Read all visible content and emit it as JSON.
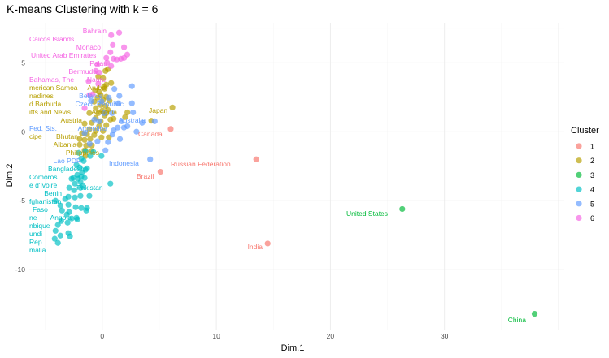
{
  "chart_data": {
    "type": "scatter",
    "title": "K-means Clustering with k = 6",
    "xlabel": "Dim.1",
    "ylabel": "Dim.2",
    "xlim": [
      -6.4,
      40.5
    ],
    "ylim": [
      -14.4,
      7.9
    ],
    "x_ticks": [
      0,
      10,
      20,
      30
    ],
    "y_ticks": [
      5,
      0,
      -5,
      -10
    ],
    "grid": true,
    "legend": {
      "title": "Cluster",
      "position": "right",
      "entries": [
        "1",
        "2",
        "3",
        "4",
        "5",
        "6"
      ]
    },
    "cluster_colors": {
      "1": "#F8766D",
      "2": "#B79F00",
      "3": "#00BA38",
      "4": "#00BFC4",
      "5": "#619CFF",
      "6": "#F564E3"
    },
    "points": {
      "1": [
        [
          6.0,
          0.2
        ],
        [
          13.5,
          -2.0
        ],
        [
          5.1,
          -2.9
        ],
        [
          14.5,
          -8.1
        ]
      ],
      "2": [
        [
          0.28,
          4.41
        ],
        [
          0.49,
          4.53
        ],
        [
          -0.35,
          4.0
        ],
        [
          0.07,
          3.88
        ],
        [
          0.35,
          3.41
        ],
        [
          0.78,
          3.53
        ],
        [
          0.21,
          3.12
        ],
        [
          -0.28,
          2.88
        ],
        [
          -0.64,
          3.0
        ],
        [
          -0.14,
          2.65
        ],
        [
          0.35,
          2.53
        ],
        [
          -0.42,
          2.47
        ],
        [
          0.07,
          2.29
        ],
        [
          0.64,
          2.24
        ],
        [
          -0.71,
          2.18
        ],
        [
          -0.14,
          1.94
        ],
        [
          0.28,
          1.88
        ],
        [
          -0.57,
          1.71
        ],
        [
          0,
          1.53
        ],
        [
          0.49,
          1.59
        ],
        [
          -0.35,
          1.35
        ],
        [
          -1.13,
          1.35
        ],
        [
          0.21,
          1.18
        ],
        [
          -0.57,
          1.0
        ],
        [
          -0.14,
          0.76
        ],
        [
          0.71,
          0.88
        ],
        [
          -0.92,
          0.65
        ],
        [
          -1.55,
          0.59
        ],
        [
          -0.28,
          0.41
        ],
        [
          0.35,
          0.47
        ],
        [
          -1.13,
          0.18
        ],
        [
          -0.57,
          0.06
        ],
        [
          0.07,
          0.06
        ],
        [
          -1.77,
          -0.12
        ],
        [
          -1.34,
          -0.18
        ],
        [
          -0.71,
          -0.24
        ],
        [
          -1.98,
          -0.53
        ],
        [
          -1.55,
          -0.59
        ],
        [
          -1.06,
          -0.53
        ],
        [
          -0.07,
          -0.41
        ],
        [
          0.57,
          -0.41
        ],
        [
          -1.98,
          -0.94
        ],
        [
          -1.41,
          -1.0
        ],
        [
          -0.92,
          -1.0
        ],
        [
          -1.55,
          -1.35
        ],
        [
          -0.99,
          -1.41
        ],
        [
          -1.48,
          -1.76
        ],
        [
          0.35,
          1.35
        ],
        [
          0.14,
          3.24
        ],
        [
          0.99,
          0.94
        ],
        [
          6.15,
          1.76
        ],
        [
          4.3,
          0.8
        ],
        [
          2.2,
          1.4
        ],
        [
          2.0,
          1.06
        ]
      ],
      "3": [
        [
          26.3,
          -5.6
        ],
        [
          37.9,
          -13.2
        ]
      ],
      "4": [
        [
          -2.05,
          -1.53
        ],
        [
          -1.84,
          -1.94
        ],
        [
          -1.63,
          -2.12
        ],
        [
          -2.26,
          -2.41
        ],
        [
          -1.98,
          -2.59
        ],
        [
          -1.48,
          -2.76
        ],
        [
          -2.19,
          -3.12
        ],
        [
          -1.77,
          -2.94
        ],
        [
          -1.34,
          -2.65
        ],
        [
          -2.54,
          -3.35
        ],
        [
          -2.69,
          -3.41
        ],
        [
          -2.12,
          -3.41
        ],
        [
          -1.84,
          -3.24
        ],
        [
          -2.4,
          -3.76
        ],
        [
          -1.91,
          -3.65
        ],
        [
          -1.55,
          -3.35
        ],
        [
          0.71,
          -3.76
        ],
        [
          -2.9,
          -4.06
        ],
        [
          -2.47,
          -4.24
        ],
        [
          -1.91,
          -4.06
        ],
        [
          -1.7,
          -3.94
        ],
        [
          -2.97,
          -4.71
        ],
        [
          -2.4,
          -4.76
        ],
        [
          -1.91,
          -4.65
        ],
        [
          -4.1,
          -5.0
        ],
        [
          -3.67,
          -5.35
        ],
        [
          -2.97,
          -5.29
        ],
        [
          -2.33,
          -5.47
        ],
        [
          -1.84,
          -5.53
        ],
        [
          -1.34,
          -5.53
        ],
        [
          -3.53,
          -5.71
        ],
        [
          -3.11,
          -6.0
        ],
        [
          -2.9,
          -5.82
        ],
        [
          -2.69,
          -6.29
        ],
        [
          -2.19,
          -6.35
        ],
        [
          -3.04,
          -6.59
        ],
        [
          -3.6,
          -6.47
        ],
        [
          -3.89,
          -6.76
        ],
        [
          -4.1,
          -7.18
        ],
        [
          -3.67,
          -7.53
        ],
        [
          -4.17,
          -7.76
        ],
        [
          -3.89,
          -8.06
        ],
        [
          -2.83,
          -7.59
        ],
        [
          -2.97,
          -7.35
        ],
        [
          -2.26,
          -6.24
        ],
        [
          -1.13,
          -4.65
        ],
        [
          -3.25,
          -4.88
        ],
        [
          -1.41,
          -5.71
        ],
        [
          -0.07,
          -1.76
        ],
        [
          -1.06,
          -1.76
        ],
        [
          -1.48,
          -1.41
        ],
        [
          -0.78,
          -1.47
        ]
      ],
      "5": [
        [
          2.6,
          3.3
        ],
        [
          1.06,
          3.1
        ],
        [
          1.5,
          2.6
        ],
        [
          2.6,
          2.06
        ],
        [
          2.7,
          1.4
        ],
        [
          4.6,
          0.76
        ],
        [
          3.5,
          0.65
        ],
        [
          1.7,
          0.76
        ],
        [
          1.9,
          0.3
        ],
        [
          1.35,
          0.3
        ],
        [
          3.0,
          0
        ],
        [
          1.4,
          2.06
        ],
        [
          0.85,
          1.35
        ],
        [
          0.57,
          2.47
        ],
        [
          4.2,
          -2.0
        ],
        [
          1.55,
          -0.53
        ],
        [
          -0.42,
          -0.7
        ],
        [
          0.5,
          -0.76
        ],
        [
          -1.1,
          -0.88
        ],
        [
          0.28,
          -1.35
        ],
        [
          -0.07,
          2.2
        ],
        [
          -0.7,
          0.88
        ],
        [
          -1.55,
          -0.1
        ],
        [
          -0.99,
          2.24
        ],
        [
          0.14,
          1.35
        ],
        [
          -0.28,
          0.76
        ],
        [
          1.0,
          0.1
        ],
        [
          2.2,
          0.4
        ],
        [
          0.9,
          -0.2
        ]
      ],
      "6": [
        [
          0.78,
          7.0
        ],
        [
          1.48,
          7.18
        ],
        [
          0.92,
          6.29
        ],
        [
          1.91,
          6.12
        ],
        [
          0.71,
          5.76
        ],
        [
          2.19,
          5.59
        ],
        [
          0.35,
          5.35
        ],
        [
          1.63,
          5.29
        ],
        [
          0.99,
          5.29
        ],
        [
          1.27,
          5.24
        ],
        [
          1.91,
          5.35
        ],
        [
          0.42,
          5.0
        ],
        [
          -0.42,
          4.88
        ],
        [
          0.78,
          4.76
        ],
        [
          -0.57,
          4.41
        ],
        [
          -0.28,
          4.29
        ],
        [
          -1.2,
          3.65
        ],
        [
          -0.35,
          3.47
        ],
        [
          -0.85,
          2.71
        ],
        [
          -1.55,
          1.71
        ],
        [
          -1.13,
          2.65
        ]
      ]
    },
    "labels": [
      {
        "text": "Bahrain",
        "cluster": "6"
      },
      {
        "text": "Caicos Islands",
        "cluster": "6"
      },
      {
        "text": "Monaco",
        "cluster": "6"
      },
      {
        "text": "United Arab Emirates",
        "cluster": "6"
      },
      {
        "text": "Palau",
        "cluster": "6"
      },
      {
        "text": "Bermuda",
        "cluster": "6"
      },
      {
        "text": "Nauru",
        "cluster": "6"
      },
      {
        "text": "Bahamas, The",
        "cluster": "6"
      },
      {
        "text": "merican Samoa",
        "cluster": "2"
      },
      {
        "text": "nadines",
        "cluster": "2"
      },
      {
        "text": "d Barbuda",
        "cluster": "2"
      },
      {
        "text": "itts and Nevis",
        "cluster": "2"
      },
      {
        "text": "Aruba",
        "cluster": "2"
      },
      {
        "text": "Belarus",
        "cluster": "5"
      },
      {
        "text": "Czech Republic",
        "cluster": "5"
      },
      {
        "text": "Armenia",
        "cluster": "2"
      },
      {
        "text": "Austria",
        "cluster": "2"
      },
      {
        "text": "Fed. Sts.",
        "cluster": "5"
      },
      {
        "text": "Argentina",
        "cluster": "5"
      },
      {
        "text": "Australia",
        "cluster": "5"
      },
      {
        "text": "Japan",
        "cluster": "2"
      },
      {
        "text": "Canada",
        "cluster": "1"
      },
      {
        "text": "Bhutan",
        "cluster": "2"
      },
      {
        "text": "Albania",
        "cluster": "2"
      },
      {
        "text": "cipe",
        "cluster": "2"
      },
      {
        "text": "Philippines",
        "cluster": "2"
      },
      {
        "text": "Lao PDR",
        "cluster": "5"
      },
      {
        "text": "Bangladesh",
        "cluster": "4"
      },
      {
        "text": "Indonesia",
        "cluster": "5"
      },
      {
        "text": "Russian Federation",
        "cluster": "1"
      },
      {
        "text": "Brazil",
        "cluster": "1"
      },
      {
        "text": "Comoros",
        "cluster": "4"
      },
      {
        "text": "e d'Ivoire",
        "cluster": "4"
      },
      {
        "text": "Benin",
        "cluster": "4"
      },
      {
        "text": "fghanistan",
        "cluster": "4"
      },
      {
        "text": "Pakistan",
        "cluster": "4"
      },
      {
        "text": "Faso",
        "cluster": "4"
      },
      {
        "text": "Angola",
        "cluster": "4"
      },
      {
        "text": "ne",
        "cluster": "4"
      },
      {
        "text": "nbique",
        "cluster": "4"
      },
      {
        "text": "undi",
        "cluster": "4"
      },
      {
        "text": "Rep.",
        "cluster": "4"
      },
      {
        "text": "malia",
        "cluster": "4"
      },
      {
        "text": "United States",
        "cluster": "3"
      },
      {
        "text": "India",
        "cluster": "1"
      },
      {
        "text": "China",
        "cluster": "3"
      }
    ]
  }
}
